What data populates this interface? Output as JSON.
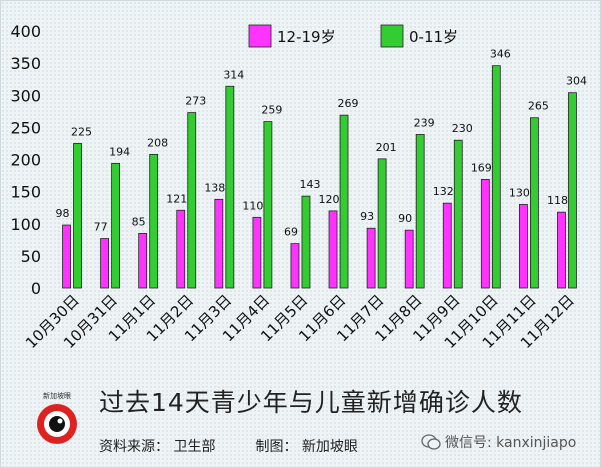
{
  "chart_data": {
    "type": "bar",
    "categories": [
      "10月30日",
      "10月31日",
      "11月1日",
      "11月2日",
      "11月3日",
      "11月4日",
      "11月5日",
      "11月6日",
      "11月7日",
      "11月8日",
      "11月9日",
      "11月10日",
      "11月11日",
      "11月12日"
    ],
    "series": [
      {
        "name": "12-19岁",
        "color": "#ff33ff",
        "values": [
          98,
          77,
          85,
          121,
          138,
          110,
          69,
          120,
          93,
          90,
          132,
          169,
          130,
          118
        ]
      },
      {
        "name": "0-11岁",
        "color": "#33cc33",
        "values": [
          225,
          194,
          208,
          273,
          314,
          259,
          143,
          269,
          201,
          239,
          230,
          346,
          265,
          304
        ]
      }
    ],
    "yticks": [
      0,
      50,
      100,
      150,
      200,
      250,
      300,
      350,
      400
    ],
    "ylim": [
      0,
      400
    ],
    "grid": false,
    "legend_position": "top-center",
    "show_data_labels": true
  },
  "footer": {
    "title": "过去14天青少年与儿童新增确诊人数",
    "source": "资料来源： 卫生部",
    "credit": "制图： 新加坡眼",
    "logo_text": "新加坡眼",
    "watermark": "微信号: kanxinjiapo"
  }
}
